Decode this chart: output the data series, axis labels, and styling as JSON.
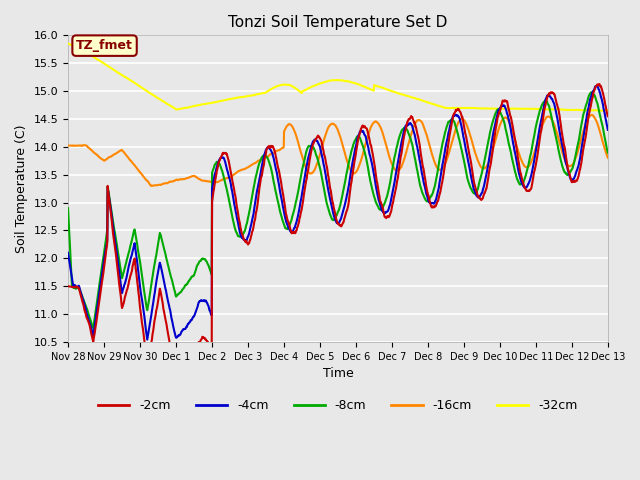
{
  "title": "Tonzi Soil Temperature Set D",
  "xlabel": "Time",
  "ylabel": "Soil Temperature (C)",
  "ylim": [
    10.5,
    16.0
  ],
  "xtick_labels": [
    "Nov 28",
    "Nov 29",
    "Nov 30",
    "Dec 1",
    "Dec 2",
    "Dec 3",
    "Dec 4",
    "Dec 5",
    "Dec 6",
    "Dec 7",
    "Dec 8",
    "Dec 9",
    "Dec 10",
    "Dec 11",
    "Dec 12",
    "Dec 13"
  ],
  "legend_labels": [
    "-2cm",
    "-4cm",
    "-8cm",
    "-16cm",
    "-32cm"
  ],
  "legend_colors": [
    "#cc0000",
    "#0000cc",
    "#00aa00",
    "#ff8800",
    "#ffff00"
  ],
  "annotation_label": "TZ_fmet",
  "annotation_color": "#880000",
  "annotation_bg": "#ffffcc",
  "bg_color": "#e8e8e8",
  "grid_color": "white",
  "colors": {
    "2cm": "#cc0000",
    "4cm": "#0000cc",
    "8cm": "#00aa00",
    "16cm": "#ff8800",
    "32cm": "#ffff00"
  }
}
